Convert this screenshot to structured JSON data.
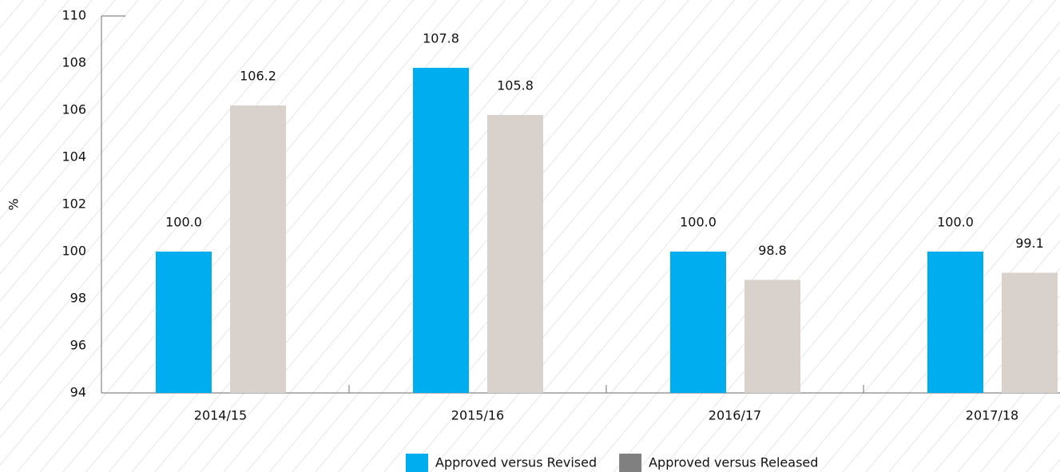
{
  "chart_data": {
    "type": "bar",
    "y_label": "%",
    "categories": [
      "2014/15",
      "2015/16",
      "2016/17",
      "2017/18"
    ],
    "series": [
      {
        "name": "Approved versus Revised",
        "color": "#00adef",
        "legend_color": "#00adef",
        "values": [
          100,
          107.8,
          100,
          100
        ],
        "value_labels": [
          "100.0",
          "107.8",
          "100.0",
          "100.0"
        ]
      },
      {
        "name": "Approved versus Released",
        "color": "#d9d1cb",
        "legend_color": "#808080",
        "values": [
          106.2,
          105.8,
          98.8,
          99.1
        ]
      }
    ],
    "ylim": [
      94,
      110
    ],
    "yticks": [
      94,
      96,
      98,
      100,
      102,
      104,
      106,
      108,
      110
    ],
    "legend": "bottom"
  }
}
